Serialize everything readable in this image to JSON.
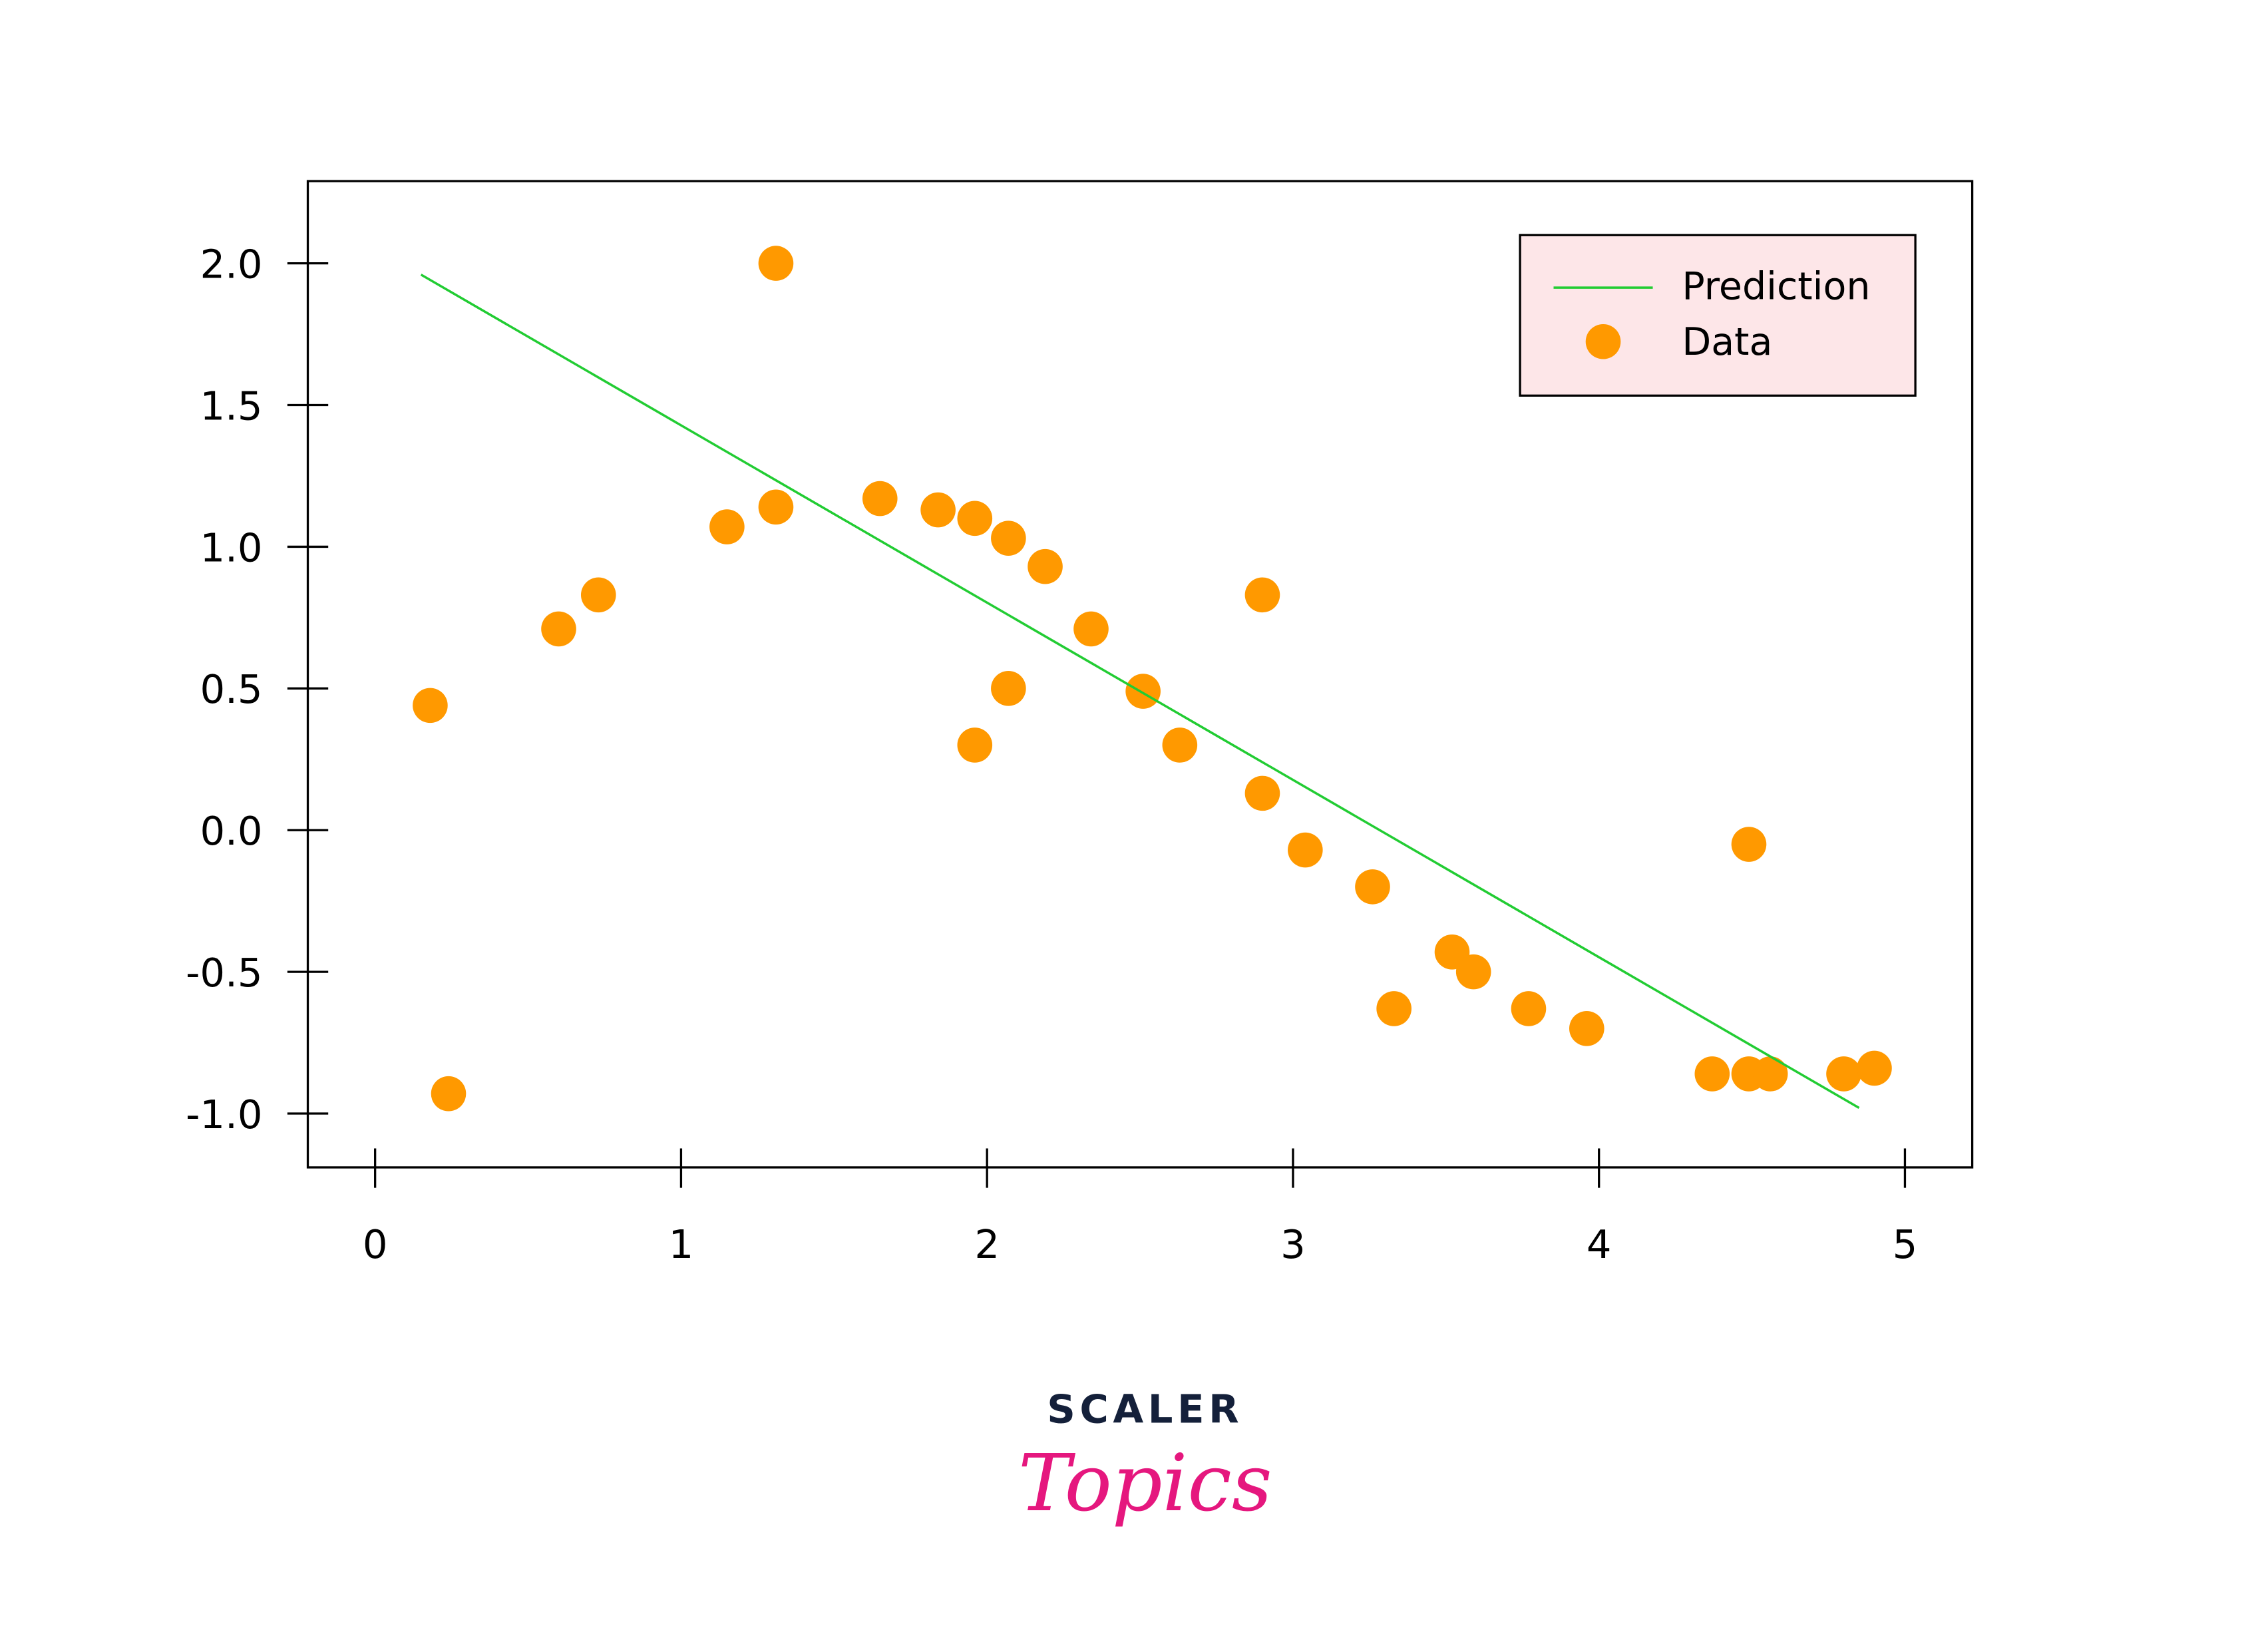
{
  "chart_data": {
    "type": "scatter",
    "title": "",
    "xlabel": "",
    "ylabel": "",
    "xlim": [
      -0.22,
      5.22
    ],
    "ylim": [
      -1.19,
      2.29
    ],
    "grid": false,
    "x_ticks": [
      0,
      1,
      2,
      3,
      4,
      5
    ],
    "x_tick_labels": [
      "0",
      "1",
      "2",
      "3",
      "4",
      "5"
    ],
    "y_ticks": [
      2.0,
      1.5,
      1.0,
      0.5,
      0.0,
      -0.5,
      -1.0
    ],
    "y_tick_labels": [
      "2.0",
      "1.5",
      "1.0",
      "0.5",
      "0.0",
      "-0.5",
      "-1.0"
    ],
    "legend": {
      "placement": "top-right",
      "entries": [
        "Prediction",
        "Data"
      ],
      "background": "#fde6e8"
    },
    "series": [
      {
        "name": "Data",
        "kind": "scatter",
        "color": "#ff9900",
        "x": [
          0.18,
          0.24,
          0.6,
          0.73,
          1.15,
          1.31,
          1.31,
          1.65,
          1.84,
          1.96,
          2.07,
          2.19,
          2.34,
          1.96,
          2.07,
          2.51,
          2.63,
          2.9,
          2.9,
          3.04,
          3.26,
          3.33,
          3.52,
          3.59,
          3.77,
          3.96,
          4.37,
          4.49,
          4.49,
          4.56,
          4.8,
          4.9
        ],
        "y": [
          0.44,
          -0.93,
          0.71,
          0.83,
          1.07,
          2.0,
          1.14,
          1.17,
          1.13,
          1.1,
          1.03,
          0.93,
          0.71,
          0.3,
          0.5,
          0.49,
          0.3,
          0.83,
          0.13,
          -0.07,
          -0.2,
          -0.63,
          -0.43,
          -0.5,
          -0.63,
          -0.7,
          -0.86,
          -0.05,
          -0.86,
          -0.86,
          -0.86,
          -0.84
        ]
      },
      {
        "name": "Prediction",
        "kind": "line",
        "color": "#22cc33",
        "x": [
          0.15,
          4.85
        ],
        "y": [
          1.96,
          -0.98
        ]
      }
    ]
  },
  "branding": {
    "line1": "SCALER",
    "line2": "Topics",
    "line1_color": "#14203a",
    "line2_color": "#e5177e"
  }
}
